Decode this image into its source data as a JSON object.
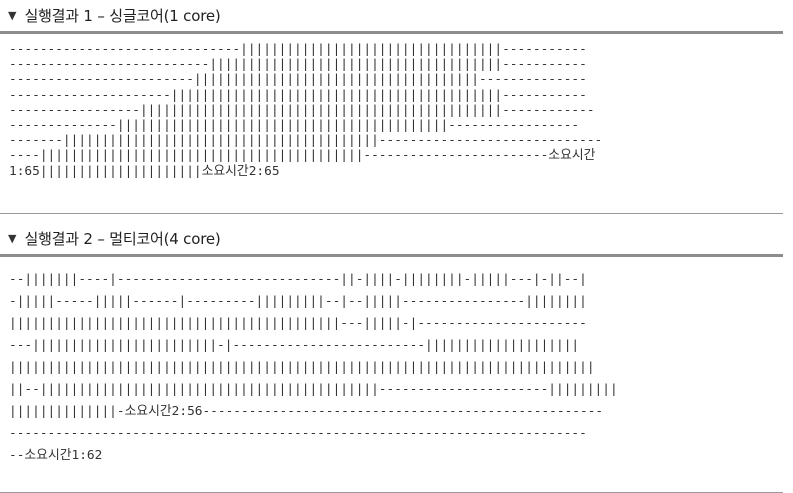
{
  "section1": {
    "title": "실행결과 1 – 싱글코어(1 core)",
    "lines": [
      "------------------------------||||||||||||||||||||||||||||||||||-----------",
      "--------------------------||||||||||||||||||||||||||||||||||||||-----------",
      "------------------------|||||||||||||||||||||||||||||||||||||--------------",
      "---------------------|||||||||||||||||||||||||||||||||||||||||||-----------",
      "-----------------|||||||||||||||||||||||||||||||||||||||||||||||------------",
      "--------------|||||||||||||||||||||||||||||||||||||||||||-----------------",
      "-------|||||||||||||||||||||||||||||||||||||||||-----------------------------",
      "----||||||||||||||||||||||||||||||||||||||||||------------------------소요시간",
      "1:65|||||||||||||||||||||소요시간2:65"
    ]
  },
  "section2": {
    "title": "실행결과 2 – 멀티코어(4 core)",
    "lines": [
      "--|||||||----|-----------------------------||-||||-||||||||-|||||---|-||--|",
      "-|||||-----|||||------|---------|||||||||--|--|||||----------------||||||||",
      "|||||||||||||||||||||||||||||||||||||||||||---|||||-|----------------------",
      "---||||||||||||||||||||||||-|-------------------------||||||||||||||||||||",
      "||||||||||||||||||||||||||||||||||||||||||||||||||||||||||||||||||||||||||||",
      "||--||||||||||||||||||||||||||||||||||||||||||||----------------------|||||||||",
      "||||||||||||||-소요시간2:56----------------------------------------------------",
      "---------------------------------------------------------------------------",
      "--소요시간1:62"
    ]
  }
}
